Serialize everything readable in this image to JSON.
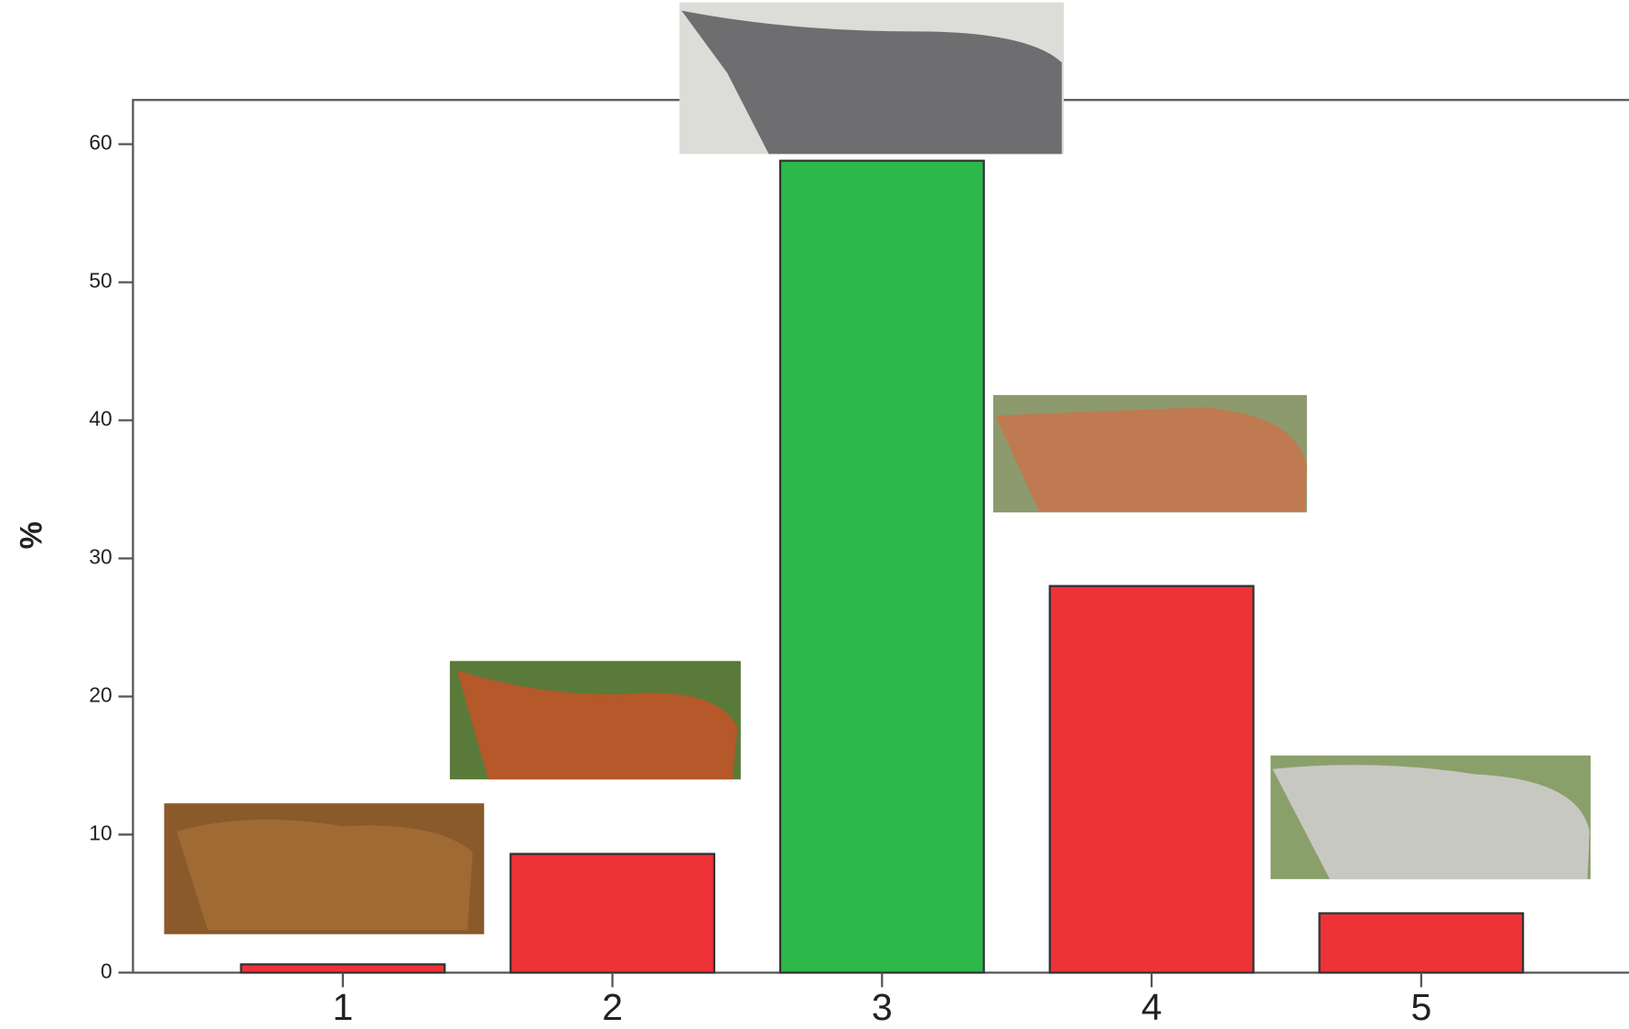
{
  "chart_data": {
    "type": "bar",
    "y_label": "%",
    "categories": [
      "1",
      "2",
      "3",
      "4",
      "5"
    ],
    "values": [
      0.6,
      8.6,
      58.8,
      28.0,
      4.3
    ],
    "colors": [
      "#ee3338",
      "#ee3338",
      "#2db84a",
      "#ee3338",
      "#ee3338"
    ],
    "ylim": [
      0,
      63.2
    ],
    "yticks": [
      0,
      10,
      20,
      30,
      40,
      50,
      60
    ]
  }
}
